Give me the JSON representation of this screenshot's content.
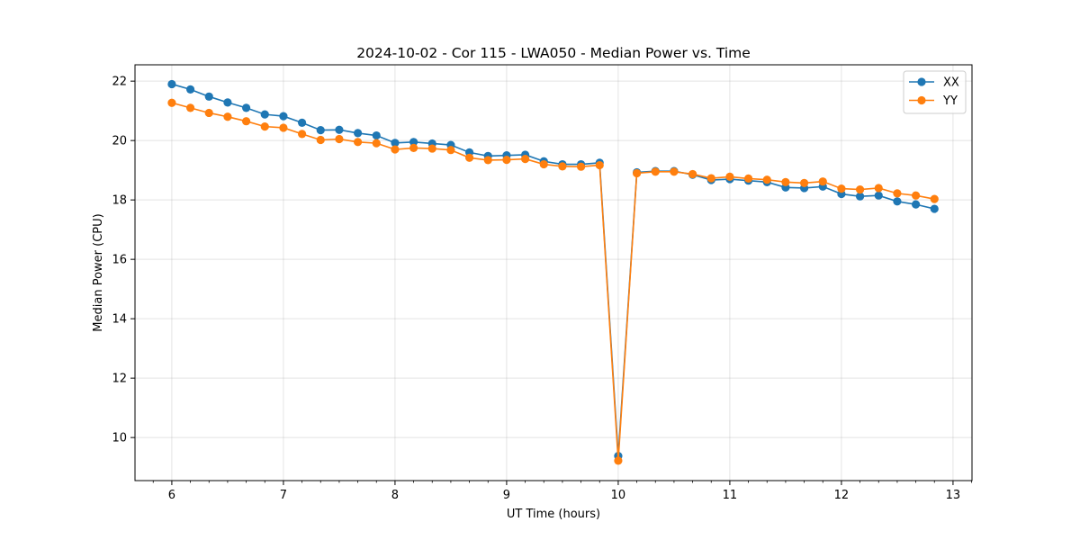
{
  "chart_data": {
    "type": "line",
    "title": "2024-10-02 - Cor 115 - LWA050 - Median Power vs. Time",
    "xlabel": "UT Time (hours)",
    "ylabel": "Median Power (CPU)",
    "xlim": [
      5.67,
      13.17
    ],
    "ylim": [
      8.55,
      22.55
    ],
    "xticks": [
      6,
      7,
      8,
      9,
      10,
      11,
      12,
      13
    ],
    "yticks": [
      10,
      12,
      14,
      16,
      18,
      20,
      22
    ],
    "grid": true,
    "legend_position": "top-right",
    "x": [
      6.0,
      6.1667,
      6.3333,
      6.5,
      6.6667,
      6.8333,
      7.0,
      7.1667,
      7.3333,
      7.5,
      7.6667,
      7.8333,
      8.0,
      8.1667,
      8.3333,
      8.5,
      8.6667,
      8.8333,
      9.0,
      9.1667,
      9.3333,
      9.5,
      9.6667,
      9.8333,
      10.0,
      10.1667,
      10.3333,
      10.5,
      10.6667,
      10.8333,
      11.0,
      11.1667,
      11.3333,
      11.5,
      11.6667,
      11.8333,
      12.0,
      12.1667,
      12.3333,
      12.5,
      12.6667,
      12.8333
    ],
    "series": [
      {
        "name": "XX",
        "color": "#1f77b4",
        "values": [
          21.9,
          21.72,
          21.48,
          21.28,
          21.1,
          20.88,
          20.82,
          20.6,
          20.35,
          20.36,
          20.25,
          20.17,
          19.92,
          19.95,
          19.9,
          19.85,
          19.6,
          19.48,
          19.5,
          19.52,
          19.3,
          19.2,
          19.2,
          19.25,
          9.38,
          18.93,
          18.97,
          18.97,
          18.85,
          18.67,
          18.7,
          18.65,
          18.6,
          18.42,
          18.4,
          18.45,
          18.2,
          18.12,
          18.15,
          17.95,
          17.85,
          17.7
        ]
      },
      {
        "name": "YY",
        "color": "#ff7f0e",
        "values": [
          21.27,
          21.1,
          20.93,
          20.8,
          20.65,
          20.47,
          20.43,
          20.22,
          20.02,
          20.05,
          19.95,
          19.91,
          19.7,
          19.75,
          19.73,
          19.68,
          19.42,
          19.34,
          19.35,
          19.38,
          19.2,
          19.13,
          19.12,
          19.17,
          9.22,
          18.9,
          18.95,
          18.95,
          18.87,
          18.73,
          18.78,
          18.72,
          18.68,
          18.6,
          18.57,
          18.62,
          18.38,
          18.35,
          18.4,
          18.22,
          18.15,
          18.03
        ]
      }
    ]
  }
}
